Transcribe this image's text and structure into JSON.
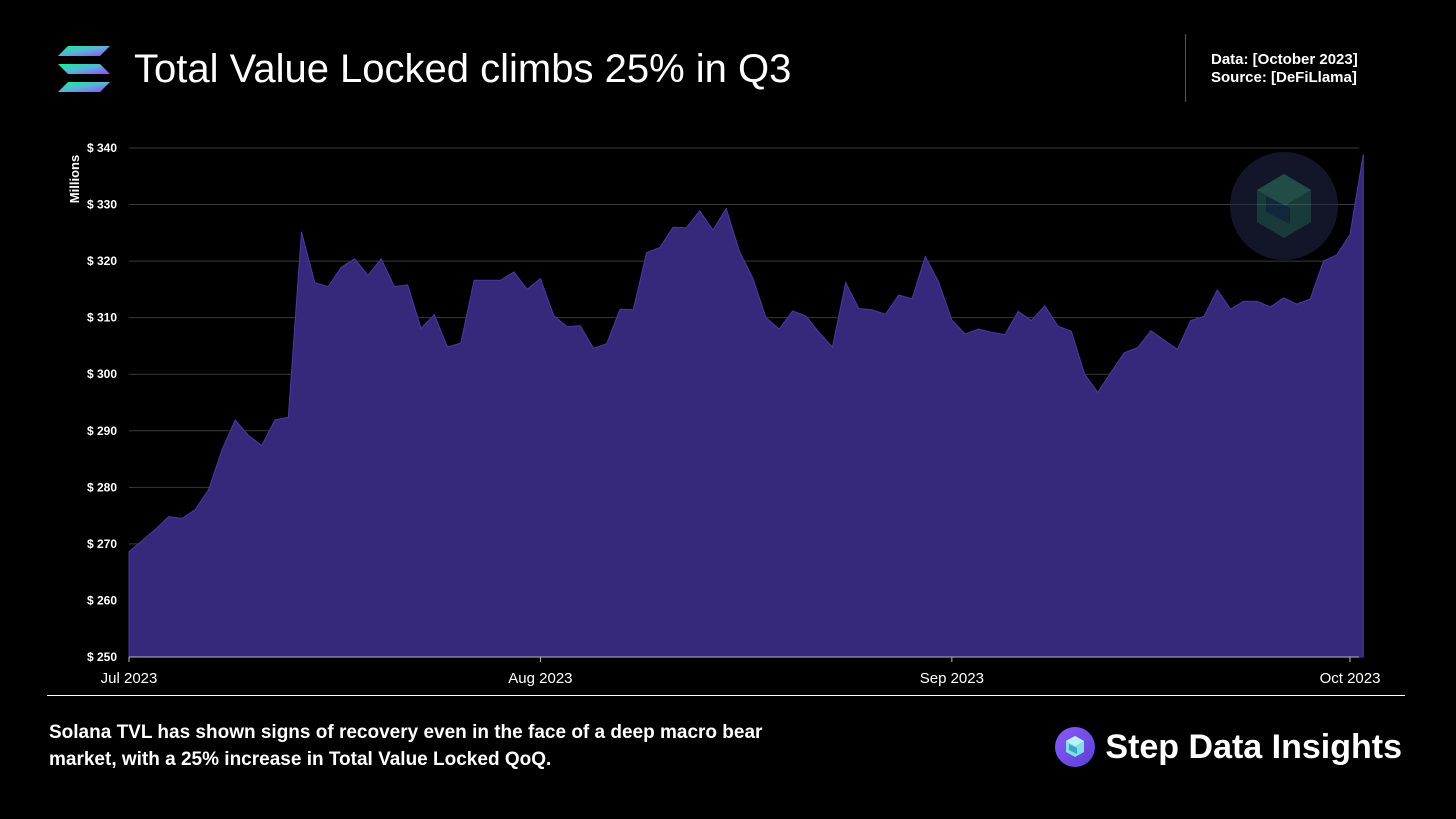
{
  "header": {
    "title": "Total Value Locked climbs 25% in Q3",
    "data_line": "Data: [October 2023]",
    "source_line": "Source: [DeFiLlama]",
    "logo_icon": "solana-logo-icon"
  },
  "footer": {
    "caption": "Solana TVL has shown signs of recovery even in the face of a deep macro bear market, with a 25% increase in Total Value Locked QoQ.",
    "brand_name": "Step Data Insights",
    "brand_icon": "step-logo-icon"
  },
  "colors": {
    "area_fill": "#36297b",
    "area_stroke": "#4a3aa0",
    "gridline": "#3a3a3a",
    "background": "#000000"
  },
  "chart_data": {
    "type": "area",
    "title": "Total Value Locked climbs 25% in Q3",
    "ylabel": "Millions",
    "xlabel": "",
    "ylim": [
      250,
      340
    ],
    "yticks": [
      250,
      260,
      270,
      280,
      290,
      300,
      310,
      320,
      330,
      340
    ],
    "ytick_labels": [
      "$ 250",
      "$ 260",
      "$ 270",
      "$ 280",
      "$ 290",
      "$ 300",
      "$ 310",
      "$ 320",
      "$ 330",
      "$ 340"
    ],
    "xticks": [
      "2023-07-01",
      "2023-08-01",
      "2023-09-01",
      "2023-10-01"
    ],
    "xtick_labels": [
      "Jul 2023",
      "Aug 2023",
      "Sep 2023",
      "Oct 2023"
    ],
    "grid": true,
    "series": [
      {
        "x": [
          "2023-07-01",
          "2023-07-02",
          "2023-07-03",
          "2023-07-04",
          "2023-07-05",
          "2023-07-06",
          "2023-07-07",
          "2023-07-08",
          "2023-07-09",
          "2023-07-10",
          "2023-07-11",
          "2023-07-12",
          "2023-07-13",
          "2023-07-14",
          "2023-07-15",
          "2023-07-16",
          "2023-07-17",
          "2023-07-18",
          "2023-07-19",
          "2023-07-20",
          "2023-07-21",
          "2023-07-22",
          "2023-07-23",
          "2023-07-24",
          "2023-07-25",
          "2023-07-26",
          "2023-07-27",
          "2023-07-28",
          "2023-07-29",
          "2023-07-30",
          "2023-07-31",
          "2023-08-01",
          "2023-08-02",
          "2023-08-03",
          "2023-08-04",
          "2023-08-05",
          "2023-08-06",
          "2023-08-07",
          "2023-08-08",
          "2023-08-09",
          "2023-08-10",
          "2023-08-11",
          "2023-08-12",
          "2023-08-13",
          "2023-08-14",
          "2023-08-15",
          "2023-08-16",
          "2023-08-17",
          "2023-08-18",
          "2023-08-19",
          "2023-08-20",
          "2023-08-21",
          "2023-08-22",
          "2023-08-23",
          "2023-08-24",
          "2023-08-25",
          "2023-08-26",
          "2023-08-27",
          "2023-08-28",
          "2023-08-29",
          "2023-08-30",
          "2023-08-31",
          "2023-09-01",
          "2023-09-02",
          "2023-09-03",
          "2023-09-04",
          "2023-09-05",
          "2023-09-06",
          "2023-09-07",
          "2023-09-08",
          "2023-09-09",
          "2023-09-10",
          "2023-09-11",
          "2023-09-12",
          "2023-09-13",
          "2023-09-14",
          "2023-09-15",
          "2023-09-16",
          "2023-09-17",
          "2023-09-18",
          "2023-09-19",
          "2023-09-20",
          "2023-09-21",
          "2023-09-22",
          "2023-09-23",
          "2023-09-24",
          "2023-09-25",
          "2023-09-26",
          "2023-09-27",
          "2023-09-28",
          "2023-09-29",
          "2023-09-30",
          "2023-10-01",
          "2023-10-02"
        ],
        "values": [
          268.6,
          270.6,
          272.6,
          274.8,
          274.5,
          276.1,
          279.6,
          286.6,
          291.9,
          289.2,
          287.4,
          291.9,
          292.4,
          325.2,
          316.2,
          315.5,
          318.9,
          320.4,
          317.5,
          320.4,
          315.5,
          315.8,
          308.1,
          310.5,
          304.8,
          305.5,
          316.6,
          316.6,
          316.6,
          318.1,
          315.0,
          316.9,
          310.4,
          308.4,
          308.6,
          304.6,
          305.4,
          311.5,
          311.4,
          321.5,
          322.4,
          326.0,
          325.9,
          328.9,
          325.5,
          329.3,
          321.7,
          317.0,
          310.0,
          308.0,
          311.2,
          310.3,
          307.4,
          304.8,
          316.2,
          311.6,
          311.4,
          310.6,
          314.0,
          313.3,
          320.8,
          316.3,
          309.6,
          307.1,
          308.0,
          307.4,
          307.0,
          311.1,
          309.5,
          312.1,
          308.5,
          307.6,
          300.0,
          296.8,
          300.4,
          303.8,
          304.7,
          307.7,
          306.0,
          304.4,
          309.5,
          310.2,
          314.9,
          311.5,
          312.9,
          312.9,
          311.9,
          313.5,
          312.4,
          313.3,
          320.0,
          321.1,
          324.7,
          338.9
        ]
      }
    ]
  }
}
